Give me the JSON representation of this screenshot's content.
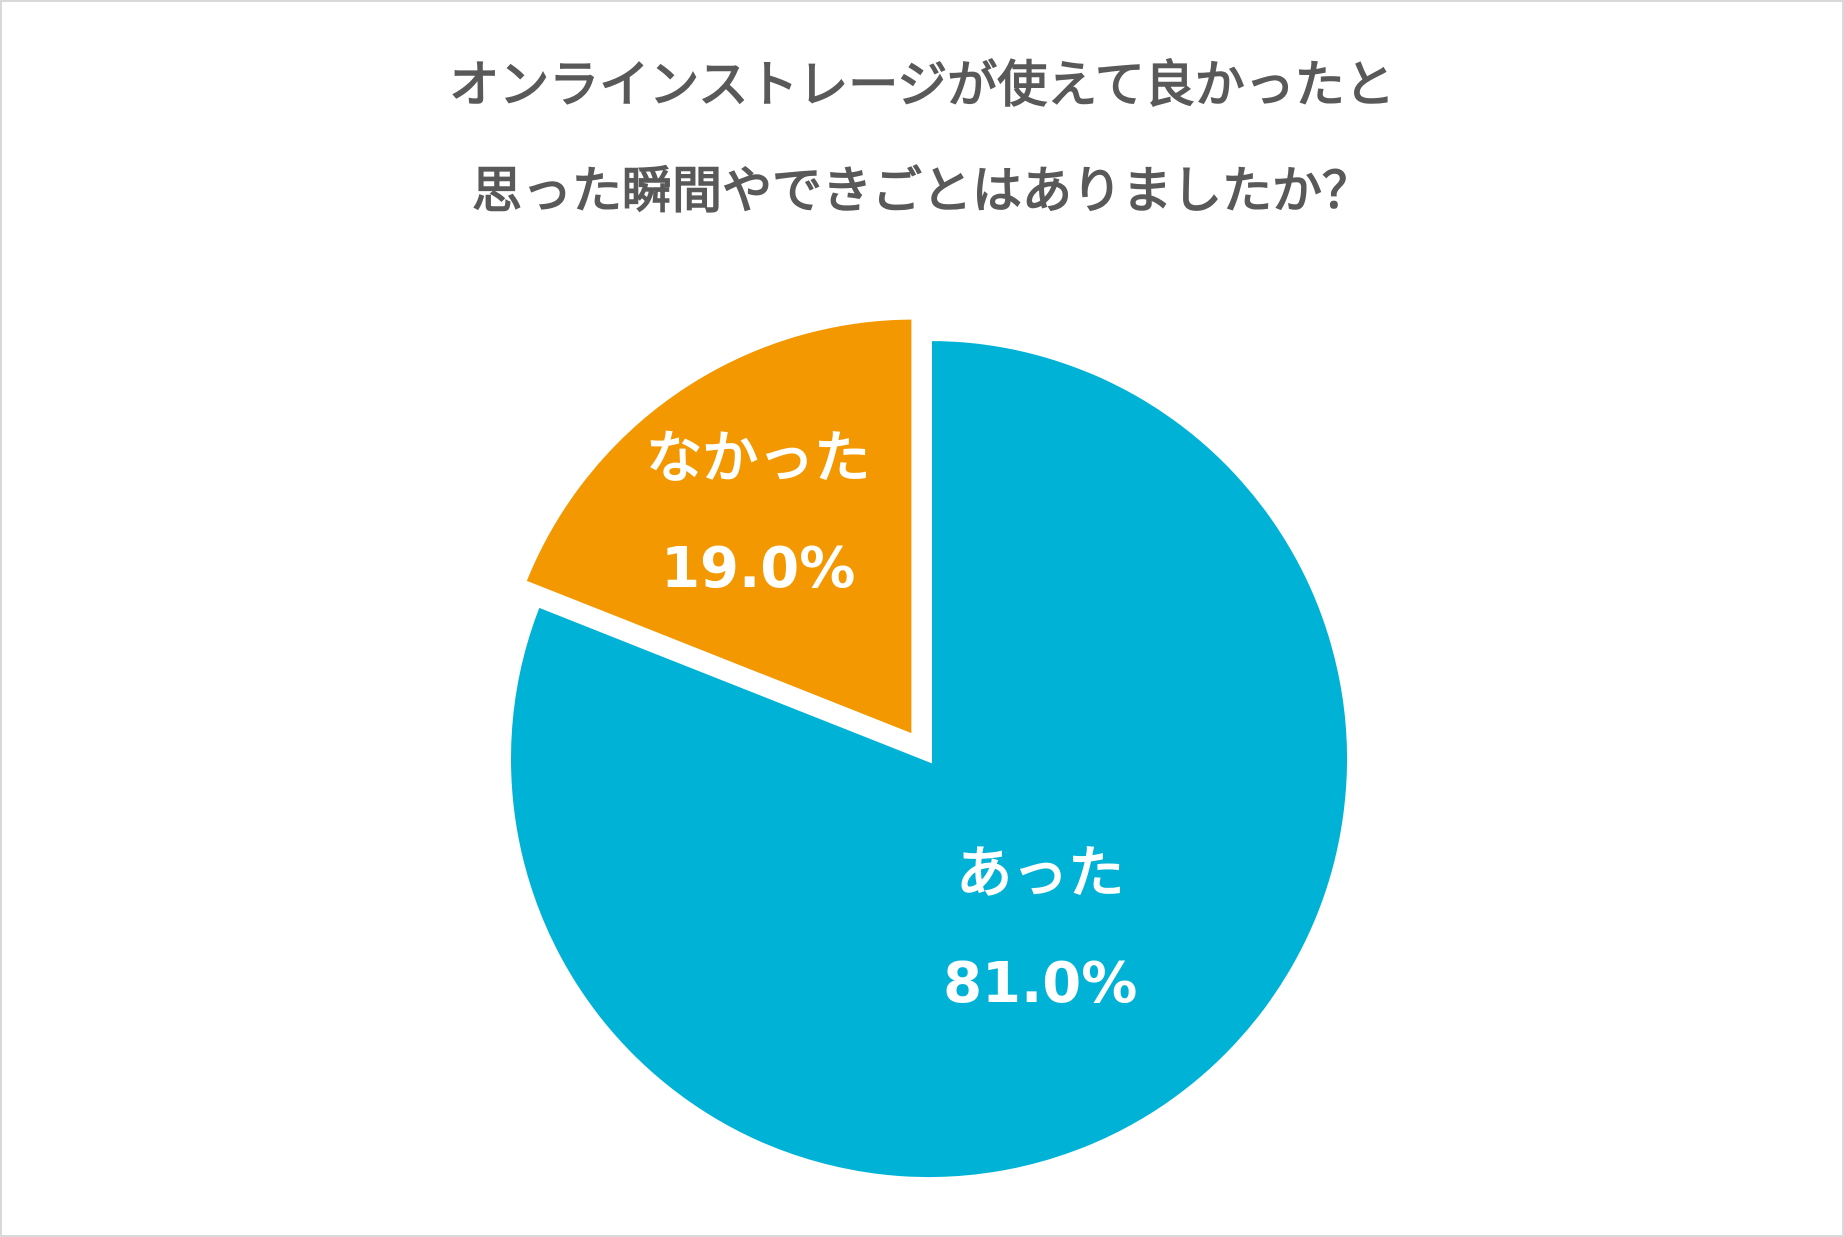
{
  "chart_data": {
    "type": "pie",
    "title": [
      "オンラインストレージが使えて良かったと",
      "思った瞬間やできごとはありましたか？"
    ],
    "categories": [
      "あった",
      "なかった"
    ],
    "values": [
      81,
      19
    ],
    "value_labels": [
      "81.0%",
      "19.0%"
    ],
    "colors": [
      "#00b2d6",
      "#f39800"
    ],
    "explode": [
      false,
      true
    ]
  }
}
